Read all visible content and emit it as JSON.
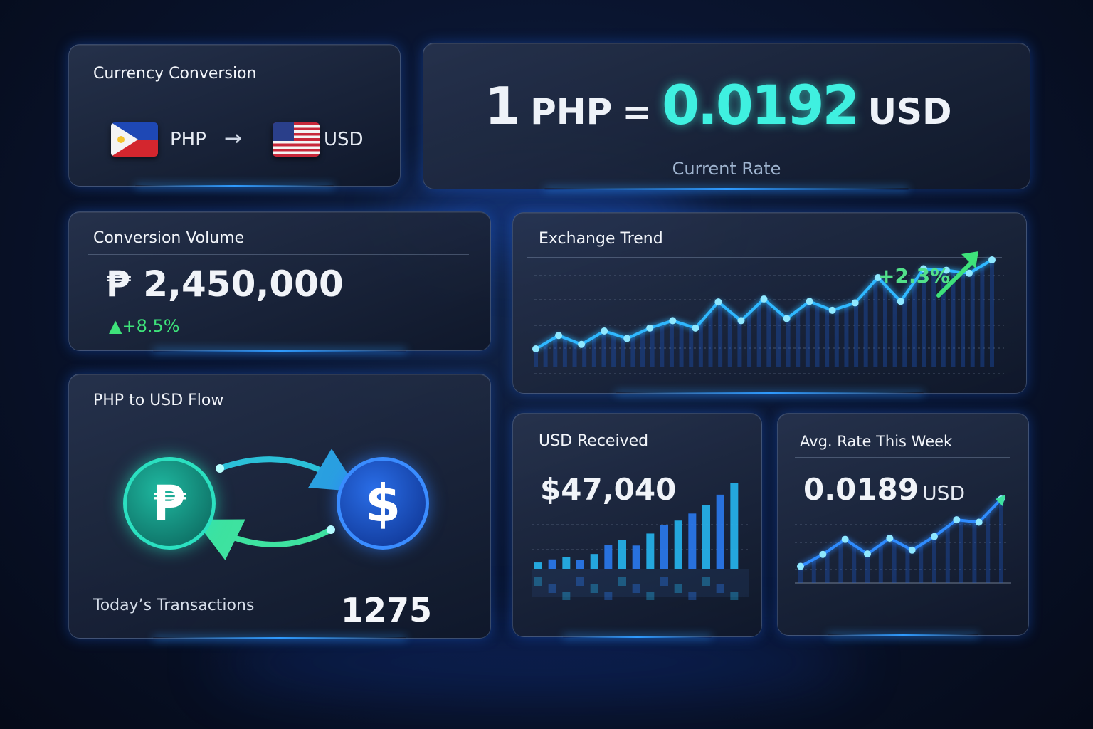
{
  "conversion": {
    "title": "Currency Conversion",
    "from": "PHP",
    "to": "USD",
    "from_flag": "philippines-flag",
    "to_flag": "us-flag",
    "arrow": "→"
  },
  "rate": {
    "one": "1",
    "from": "PHP",
    "equals": "=",
    "value": "0.0192",
    "to": "USD",
    "label": "Current Rate",
    "accent": "#3ff0e0"
  },
  "volume": {
    "title": "Conversion Volume",
    "currency_symbol": "₱",
    "amount": "2,450,000",
    "change": "▲+8.5%",
    "change_color": "#3ee27a"
  },
  "trend": {
    "title": "Exchange Trend",
    "change": "+2.3%",
    "values": [
      60,
      105,
      75,
      120,
      95,
      130,
      155,
      130,
      218,
      155,
      228,
      162,
      220,
      190,
      215,
      300,
      220,
      330,
      325,
      315,
      360
    ],
    "line_color": "#2fb8ff"
  },
  "flow": {
    "title": "PHP to USD Flow",
    "from_symbol": "₱",
    "to_symbol": "$",
    "transactions_label": "Today’s Transactions",
    "transactions_value": "1275"
  },
  "usd_received": {
    "title": "USD Received",
    "amount": "$47,040",
    "bars": [
      27,
      40,
      50,
      38,
      63,
      102,
      123,
      99,
      150,
      187,
      205,
      235,
      272,
      315,
      363
    ]
  },
  "avg_rate": {
    "title": "Avg. Rate This Week",
    "value": "0.0189",
    "unit": "USD",
    "values": [
      70,
      120,
      183,
      122,
      188,
      138,
      195,
      265,
      255,
      352
    ]
  }
}
